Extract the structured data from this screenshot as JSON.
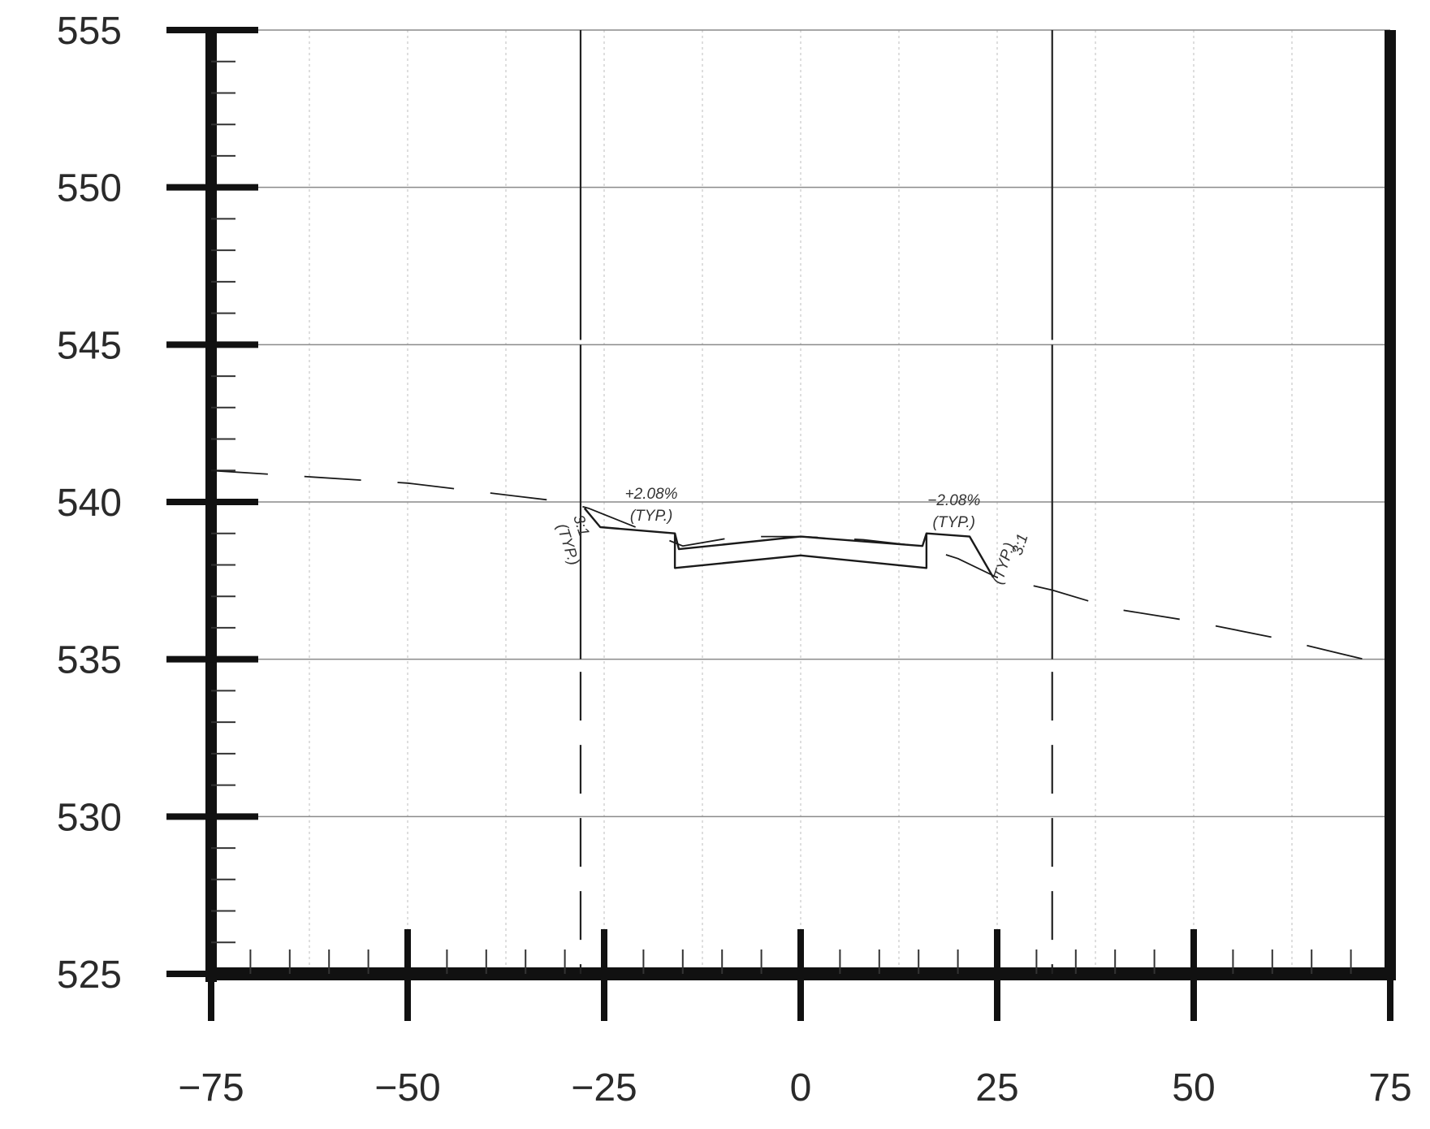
{
  "chart_data": {
    "type": "line",
    "title": "",
    "xlabel": "",
    "ylabel": "",
    "xlim": [
      -75,
      75
    ],
    "ylim": [
      525,
      555
    ],
    "x_ticks": [
      -75,
      -50,
      -25,
      0,
      25,
      50,
      75
    ],
    "x_tick_labels": [
      "−75",
      "−50",
      "−25",
      "0",
      "25",
      "50",
      "75"
    ],
    "y_ticks": [
      525,
      530,
      535,
      540,
      545,
      550,
      555
    ],
    "y_tick_labels": [
      "525",
      "530",
      "535",
      "540",
      "545",
      "550",
      "555"
    ],
    "grid": true,
    "series": [
      {
        "style": "dashed",
        "points": [
          [
            -75,
            541.0
          ],
          [
            -50,
            540.6
          ],
          [
            -30,
            540.0
          ],
          [
            -27,
            539.8
          ],
          [
            -15,
            538.6
          ],
          [
            -8,
            538.9
          ],
          [
            0,
            538.9
          ],
          [
            8,
            538.8
          ],
          [
            15,
            538.6
          ],
          [
            20,
            538.2
          ],
          [
            25,
            537.6
          ],
          [
            32,
            537.2
          ],
          [
            40,
            536.6
          ],
          [
            50,
            536.2
          ],
          [
            60,
            535.7
          ],
          [
            75,
            534.8
          ]
        ]
      },
      {
        "style": "solid",
        "points": [
          [
            -27.5,
            539.8
          ],
          [
            -25.5,
            539.2
          ],
          [
            -16,
            539.0
          ],
          [
            -15.5,
            538.5
          ],
          [
            0,
            538.9
          ],
          [
            15.5,
            538.6
          ],
          [
            16,
            539.0
          ],
          [
            21.5,
            538.9
          ],
          [
            24.5,
            537.6
          ]
        ]
      },
      {
        "style": "solid",
        "points": [
          [
            -16,
            539.0
          ],
          [
            -16,
            537.9
          ],
          [
            0,
            538.3
          ],
          [
            16,
            537.9
          ],
          [
            16,
            539.0
          ]
        ]
      }
    ],
    "vertical_lines": [
      -28,
      32
    ],
    "annotations": [
      {
        "text": "+2.08%",
        "x": -19,
        "y": 540.1
      },
      {
        "text": "(TYP.)",
        "x": -19,
        "y": 539.4
      },
      {
        "text": "−2.08%",
        "x": 19.5,
        "y": 539.9
      },
      {
        "text": "(TYP.)",
        "x": 19.5,
        "y": 539.2
      },
      {
        "text": "3:1",
        "x": -28.5,
        "y": 539.2
      },
      {
        "text": "(TYP.)",
        "x": -30.2,
        "y": 538.6
      },
      {
        "text": "3:1",
        "x": 28.5,
        "y": 538.6
      },
      {
        "text": "(TYP.)",
        "x": 26.4,
        "y": 538.0
      }
    ]
  }
}
